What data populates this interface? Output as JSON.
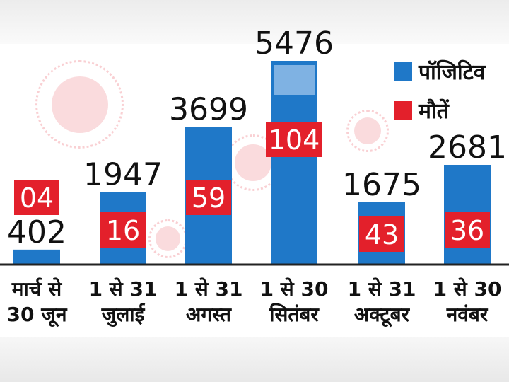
{
  "chart_data": {
    "type": "bar",
    "categories": [
      [
        "मार्च से",
        "30 जून"
      ],
      [
        "1 से 31",
        "जुलाई"
      ],
      [
        "1 से 31",
        "अगस्त"
      ],
      [
        "1 से 30",
        "सितंबर"
      ],
      [
        "1 से 31",
        "अक्टूबर"
      ],
      [
        "1 से 30",
        "नवंबर"
      ]
    ],
    "series": [
      {
        "name": "पॉजिटिव",
        "values": [
          402,
          1947,
          3699,
          5476,
          1675,
          2681
        ],
        "labels": [
          "402",
          "1947",
          "3699",
          "5476",
          "1675",
          "2681"
        ],
        "color": "#1f78c8"
      },
      {
        "name": "मौतें",
        "values": [
          4,
          16,
          59,
          104,
          43,
          36
        ],
        "labels": [
          "04",
          "16",
          "59",
          "104",
          "43",
          "36"
        ],
        "color": "#e3202b"
      }
    ],
    "ylim": [
      0,
      5476
    ],
    "legend": "top-right",
    "grid": false
  }
}
